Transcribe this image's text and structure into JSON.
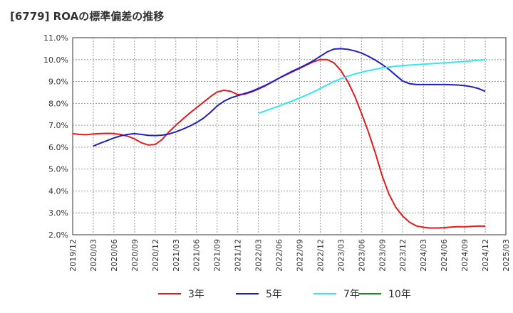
{
  "chart_data": {
    "type": "line",
    "title": "[6779]  ROAの標準偏差の推移",
    "xlabel": "",
    "ylabel": "",
    "ylim": [
      2.0,
      11.0
    ],
    "yticks": [
      "2.0%",
      "3.0%",
      "4.0%",
      "5.0%",
      "6.0%",
      "7.0%",
      "8.0%",
      "9.0%",
      "10.0%",
      "11.0%"
    ],
    "yvalues": [
      2.0,
      3.0,
      4.0,
      5.0,
      6.0,
      7.0,
      8.0,
      9.0,
      10.0,
      11.0
    ],
    "xticks": [
      "2019/12",
      "2020/03",
      "2020/06",
      "2020/09",
      "2020/12",
      "2021/03",
      "2021/06",
      "2021/09",
      "2021/12",
      "2022/03",
      "2022/06",
      "2022/09",
      "2022/12",
      "2023/03",
      "2023/06",
      "2023/09",
      "2023/12",
      "2024/03",
      "2024/06",
      "2024/09",
      "2024/12",
      "2025/03"
    ],
    "grid": true,
    "legend_position": "bottom",
    "series": [
      {
        "name": "3年",
        "color": "#e31a1c",
        "x": [
          "2019/12",
          "2020/01",
          "2020/02",
          "2020/03",
          "2020/04",
          "2020/05",
          "2020/06",
          "2020/07",
          "2020/08",
          "2020/09",
          "2020/10",
          "2020/11",
          "2020/12",
          "2021/01",
          "2021/02",
          "2021/03",
          "2021/04",
          "2021/05",
          "2021/06",
          "2021/07",
          "2021/08",
          "2021/09",
          "2021/10",
          "2021/11",
          "2021/12",
          "2022/01",
          "2022/02",
          "2022/03",
          "2022/04",
          "2022/05",
          "2022/06",
          "2022/07",
          "2022/08",
          "2022/09",
          "2022/10",
          "2022/11",
          "2022/12",
          "2023/01",
          "2023/02",
          "2023/03",
          "2023/04",
          "2023/05",
          "2023/06",
          "2023/07",
          "2023/08",
          "2023/09",
          "2023/10",
          "2023/11",
          "2023/12",
          "2024/01",
          "2024/02",
          "2024/03",
          "2024/04",
          "2024/05",
          "2024/06",
          "2024/07",
          "2024/08",
          "2024/09",
          "2024/10",
          "2024/11",
          "2024/12"
        ],
        "values": [
          6.62,
          6.58,
          6.57,
          6.6,
          6.62,
          6.63,
          6.62,
          6.58,
          6.5,
          6.38,
          6.2,
          6.1,
          6.12,
          6.35,
          6.7,
          7.0,
          7.28,
          7.55,
          7.8,
          8.05,
          8.3,
          8.52,
          8.6,
          8.55,
          8.4,
          8.42,
          8.52,
          8.65,
          8.8,
          8.97,
          9.15,
          9.3,
          9.45,
          9.6,
          9.75,
          9.9,
          10.0,
          10.0,
          9.85,
          9.5,
          9.0,
          8.35,
          7.55,
          6.7,
          5.75,
          4.7,
          3.85,
          3.25,
          2.85,
          2.57,
          2.4,
          2.34,
          2.31,
          2.31,
          2.32,
          2.35,
          2.37,
          2.36,
          2.38,
          2.4,
          2.39
        ]
      },
      {
        "name": "5年",
        "color": "#1f1fbf",
        "x": [
          "2020/03",
          "2020/04",
          "2020/05",
          "2020/06",
          "2020/07",
          "2020/08",
          "2020/09",
          "2020/10",
          "2020/11",
          "2020/12",
          "2021/01",
          "2021/02",
          "2021/03",
          "2021/04",
          "2021/05",
          "2021/06",
          "2021/07",
          "2021/08",
          "2021/09",
          "2021/10",
          "2021/11",
          "2021/12",
          "2022/01",
          "2022/02",
          "2022/03",
          "2022/04",
          "2022/05",
          "2022/06",
          "2022/07",
          "2022/08",
          "2022/09",
          "2022/10",
          "2022/11",
          "2022/12",
          "2023/01",
          "2023/02",
          "2023/03",
          "2023/04",
          "2023/05",
          "2023/06",
          "2023/07",
          "2023/08",
          "2023/09",
          "2023/10",
          "2023/11",
          "2023/12",
          "2024/01",
          "2024/02",
          "2024/03",
          "2024/04",
          "2024/05",
          "2024/06",
          "2024/07",
          "2024/08",
          "2024/09",
          "2024/10",
          "2024/11",
          "2024/12"
        ],
        "values": [
          6.05,
          6.18,
          6.3,
          6.42,
          6.52,
          6.58,
          6.62,
          6.58,
          6.54,
          6.53,
          6.55,
          6.6,
          6.7,
          6.82,
          6.96,
          7.12,
          7.32,
          7.58,
          7.88,
          8.1,
          8.25,
          8.35,
          8.45,
          8.55,
          8.68,
          8.82,
          8.98,
          9.15,
          9.32,
          9.48,
          9.62,
          9.78,
          9.95,
          10.15,
          10.35,
          10.48,
          10.5,
          10.47,
          10.4,
          10.3,
          10.15,
          9.98,
          9.78,
          9.55,
          9.28,
          9.02,
          8.9,
          8.86,
          8.86,
          8.86,
          8.86,
          8.86,
          8.85,
          8.84,
          8.81,
          8.76,
          8.68,
          8.55
        ]
      },
      {
        "name": "7年",
        "color": "#33e6f2",
        "x": [
          "2022/03",
          "2022/04",
          "2022/05",
          "2022/06",
          "2022/07",
          "2022/08",
          "2022/09",
          "2022/10",
          "2022/11",
          "2022/12",
          "2023/01",
          "2023/02",
          "2023/03",
          "2023/04",
          "2023/05",
          "2023/06",
          "2023/07",
          "2023/08",
          "2023/09",
          "2023/10",
          "2023/11",
          "2023/12",
          "2024/01",
          "2024/02",
          "2024/03",
          "2024/04",
          "2024/05",
          "2024/06",
          "2024/07",
          "2024/08",
          "2024/09",
          "2024/10",
          "2024/11",
          "2024/12"
        ],
        "values": [
          7.55,
          7.65,
          7.77,
          7.88,
          8.0,
          8.12,
          8.25,
          8.38,
          8.52,
          8.68,
          8.84,
          9.0,
          9.12,
          9.24,
          9.34,
          9.42,
          9.5,
          9.56,
          9.62,
          9.66,
          9.7,
          9.73,
          9.75,
          9.77,
          9.79,
          9.81,
          9.83,
          9.85,
          9.87,
          9.89,
          9.91,
          9.94,
          9.97,
          10.0
        ]
      },
      {
        "name": "10年",
        "color": "#1a8c1a",
        "x": [],
        "values": []
      }
    ]
  }
}
